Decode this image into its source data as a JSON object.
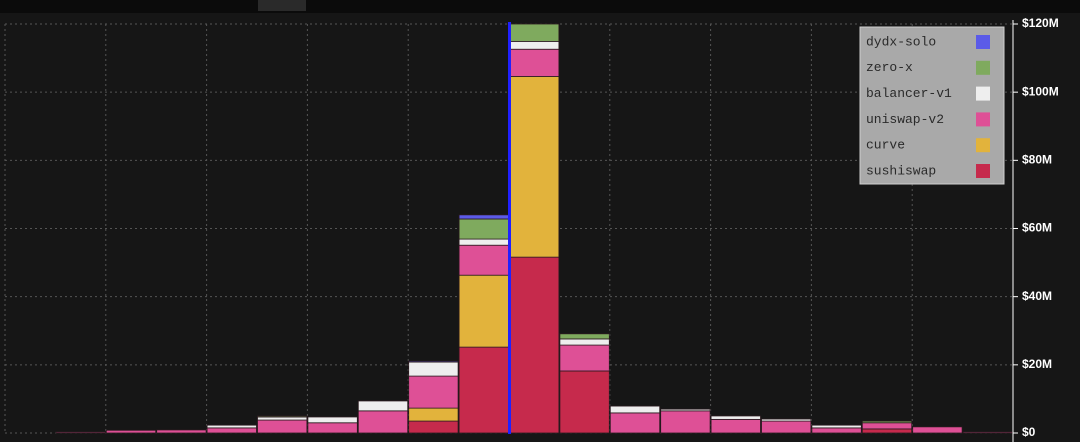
{
  "chart_data": {
    "type": "bar",
    "stacked": true,
    "grid": true,
    "legend": "top-right",
    "categories": [
      null,
      null,
      null,
      null,
      null,
      null,
      null,
      null,
      null,
      null,
      null,
      null,
      null,
      null,
      null,
      null,
      null,
      null,
      null,
      null
    ],
    "series": [
      {
        "name": "dydx-solo",
        "color": "#5b5be8",
        "values": [
          0,
          0,
          0,
          0,
          0,
          0,
          0,
          0,
          300000,
          1200000,
          0,
          0,
          0,
          0,
          0,
          0,
          0,
          0,
          0,
          0
        ]
      },
      {
        "name": "zero-x",
        "color": "#7faa5e",
        "values": [
          0,
          0,
          0,
          0,
          0,
          300000,
          0,
          0,
          0,
          5900000,
          5100000,
          1500000,
          0,
          0,
          0,
          0,
          0,
          500000,
          0,
          0
        ]
      },
      {
        "name": "balancer-v1",
        "color": "#eeeeee",
        "values": [
          0,
          0,
          0,
          0,
          800000,
          900000,
          1700000,
          2900000,
          4100000,
          1800000,
          2300000,
          1800000,
          2000000,
          500000,
          1000000,
          600000,
          800000,
          0,
          0,
          0
        ]
      },
      {
        "name": "uniswap-v2",
        "color": "#de5096",
        "values": [
          0,
          300000,
          800000,
          900000,
          1500000,
          3800000,
          3000000,
          6500000,
          9400000,
          8800000,
          8000000,
          7600000,
          5900000,
          6500000,
          4000000,
          3500000,
          1500000,
          1800000,
          1800000,
          300000
        ]
      },
      {
        "name": "curve",
        "color": "#e2b33c",
        "values": [
          0,
          0,
          0,
          0,
          0,
          0,
          0,
          0,
          3800000,
          21100000,
          53000000,
          0,
          0,
          0,
          0,
          0,
          0,
          0,
          0,
          0
        ]
      },
      {
        "name": "sushiswap",
        "color": "#c62a4c",
        "values": [
          0,
          0,
          0,
          0,
          0,
          0,
          0,
          0,
          3500000,
          25200000,
          51600000,
          18200000,
          0,
          0,
          0,
          0,
          0,
          1200000,
          0,
          0
        ]
      }
    ],
    "ylim": [
      0,
      120000000
    ],
    "yticks": [
      {
        "value": 0,
        "label": "$0"
      },
      {
        "value": 20000000,
        "label": "$20M"
      },
      {
        "value": 40000000,
        "label": "$40M"
      },
      {
        "value": 60000000,
        "label": "$60M"
      },
      {
        "value": 80000000,
        "label": "$80M"
      },
      {
        "value": 100000000,
        "label": "$100M"
      },
      {
        "value": 120000000,
        "label": "$120M"
      }
    ]
  }
}
